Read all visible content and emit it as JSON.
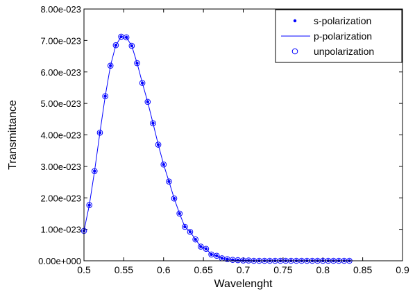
{
  "chart_data": {
    "type": "scatter",
    "title": "",
    "xlabel": "Wavelenght",
    "ylabel": "Transmittance",
    "xlim": [
      0.5,
      0.9
    ],
    "ylim": [
      0,
      8e-23
    ],
    "x_ticks": [
      0.5,
      0.55,
      0.6,
      0.65,
      0.7,
      0.75,
      0.8,
      0.85,
      0.9
    ],
    "x_tick_labels": [
      "0.5",
      "0.55",
      "0.6",
      "0.65",
      "0.7",
      "0.75",
      "0.8",
      "0.85",
      "0.9"
    ],
    "y_ticks": [
      0,
      1e-23,
      2e-23,
      3e-23,
      4e-23,
      5e-23,
      6e-23,
      7e-23,
      8e-23
    ],
    "y_tick_labels": [
      "0.00e+000",
      "1.00e-023",
      "2.00e-023",
      "3.00e-023",
      "4.00e-023",
      "5.00e-023",
      "6.00e-023",
      "7.00e-023",
      "8.00e-023"
    ],
    "grid": false,
    "legend_position": "top-right",
    "color": "#0000ff",
    "x": [
      0.5,
      0.5067,
      0.5133,
      0.52,
      0.5267,
      0.5333,
      0.54,
      0.5467,
      0.5533,
      0.56,
      0.5667,
      0.5733,
      0.58,
      0.5867,
      0.5933,
      0.6,
      0.6067,
      0.6133,
      0.62,
      0.6267,
      0.6333,
      0.64,
      0.6467,
      0.6533,
      0.66,
      0.6667,
      0.6733,
      0.68,
      0.6867,
      0.6933,
      0.7,
      0.7067,
      0.7133,
      0.72,
      0.7267,
      0.7333,
      0.74,
      0.7467,
      0.7533,
      0.76,
      0.7667,
      0.7733,
      0.78,
      0.7867,
      0.7933,
      0.8,
      0.8067,
      0.8133,
      0.82,
      0.8267,
      0.8333
    ],
    "series": [
      {
        "name": "s-polarization",
        "style": "dot",
        "values": [
          9.5e-24,
          1.77e-23,
          2.85e-23,
          4.07e-23,
          5.23e-23,
          6.2e-23,
          6.85e-23,
          7.12e-23,
          7.1e-23,
          6.83e-23,
          6.28e-23,
          5.65e-23,
          5.05e-23,
          4.37e-23,
          3.69e-23,
          3.06e-23,
          2.52e-23,
          1.98e-23,
          1.5e-23,
          1.08e-23,
          9.2e-24,
          6.8e-24,
          4.5e-24,
          3.8e-24,
          2e-24,
          1.6e-24,
          8e-25,
          5e-25,
          3e-25,
          2e-25,
          1e-25,
          1e-25,
          0,
          0,
          0,
          0,
          0,
          0,
          0,
          0,
          0,
          0,
          0,
          0,
          0,
          0,
          0,
          0,
          0,
          0,
          0
        ]
      },
      {
        "name": "p-polarization",
        "style": "line",
        "values": [
          9.5e-24,
          1.77e-23,
          2.85e-23,
          4.07e-23,
          5.23e-23,
          6.2e-23,
          6.85e-23,
          7.12e-23,
          7.1e-23,
          6.83e-23,
          6.28e-23,
          5.65e-23,
          5.05e-23,
          4.37e-23,
          3.69e-23,
          3.06e-23,
          2.52e-23,
          1.98e-23,
          1.5e-23,
          1.08e-23,
          9.2e-24,
          6.8e-24,
          4.5e-24,
          3.8e-24,
          2e-24,
          1.6e-24,
          8e-25,
          5e-25,
          3e-25,
          2e-25,
          1e-25,
          1e-25,
          0,
          0,
          0,
          0,
          0,
          0,
          0,
          0,
          0,
          0,
          0,
          0,
          0,
          0,
          0,
          0,
          0,
          0,
          0
        ]
      },
      {
        "name": "unpolarization",
        "style": "circle",
        "values": [
          9.5e-24,
          1.77e-23,
          2.85e-23,
          4.07e-23,
          5.23e-23,
          6.2e-23,
          6.85e-23,
          7.12e-23,
          7.1e-23,
          6.83e-23,
          6.28e-23,
          5.65e-23,
          5.05e-23,
          4.37e-23,
          3.69e-23,
          3.06e-23,
          2.52e-23,
          1.98e-23,
          1.5e-23,
          1.08e-23,
          9.2e-24,
          6.8e-24,
          4.5e-24,
          3.8e-24,
          2e-24,
          1.6e-24,
          8e-25,
          5e-25,
          3e-25,
          2e-25,
          1e-25,
          1e-25,
          0,
          0,
          0,
          0,
          0,
          0,
          0,
          0,
          0,
          0,
          0,
          0,
          0,
          0,
          0,
          0,
          0,
          0,
          0
        ]
      }
    ]
  }
}
